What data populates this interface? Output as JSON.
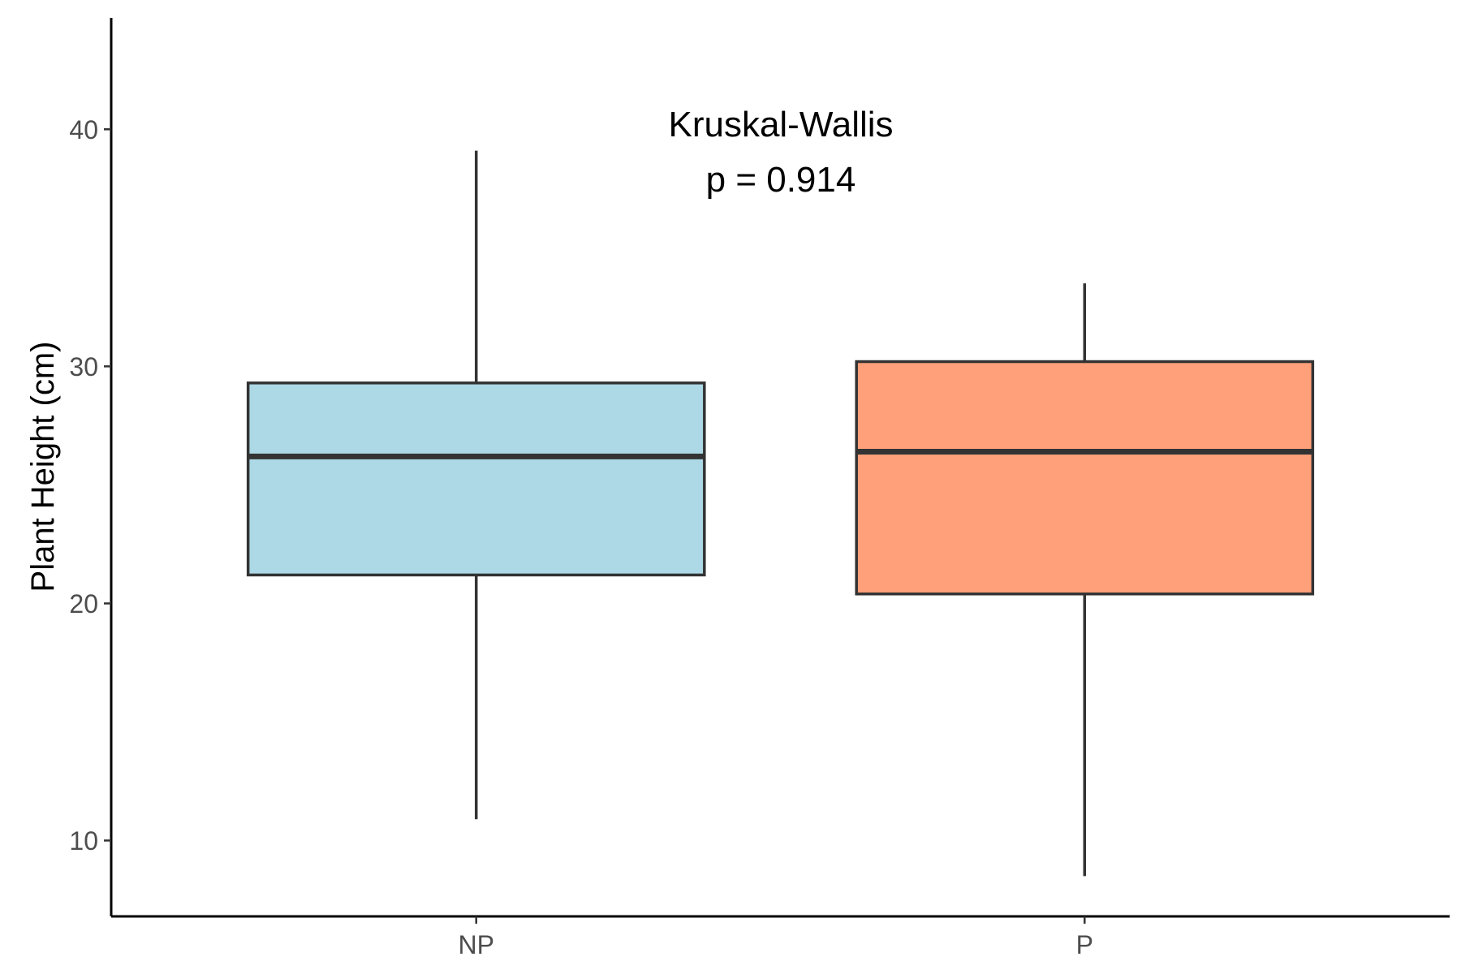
{
  "chart_data": {
    "type": "box",
    "ylabel": "Plant Height (cm)",
    "xlabel": "",
    "ylim": [
      6.8,
      44.7
    ],
    "yticks": [
      10,
      20,
      30,
      40
    ],
    "grid": false,
    "annotation": {
      "line1": "Kruskal-Wallis",
      "line2": "p = 0.914"
    },
    "groups": [
      {
        "category": "NP",
        "min": 10.9,
        "q1": 21.2,
        "median": 26.2,
        "q3": 29.3,
        "max": 39.1,
        "color": "#ADD8E6"
      },
      {
        "category": "P",
        "min": 8.5,
        "q1": 20.4,
        "median": 26.4,
        "q3": 30.2,
        "max": 33.5,
        "color": "#FFA07A"
      }
    ]
  }
}
